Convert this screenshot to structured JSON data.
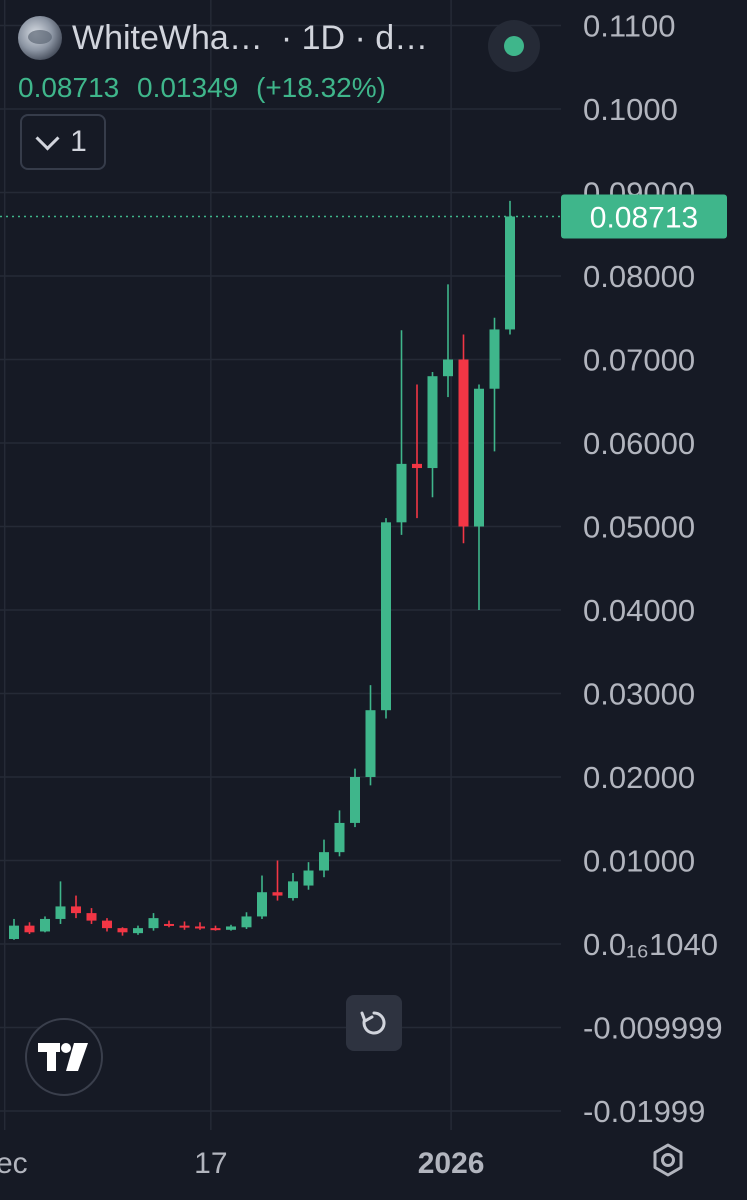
{
  "header": {
    "symbol": "WhiteWha…",
    "interval": "· 1D · d…",
    "close": "0.08713",
    "change": "0.01349",
    "change_pct": "(+18.32%)",
    "status_color": "#3fb68b"
  },
  "indicator_toggle": {
    "count": "1"
  },
  "price_label": "0.08713",
  "icons": {
    "reset": "reset-icon",
    "logo": "tradingview-logo-icon",
    "settings": "gear-icon"
  },
  "colors": {
    "background": "#161a25",
    "up": "#3fb68b",
    "down": "#f23645",
    "grid": "#252a36",
    "text": "#d1d4dc",
    "axis_text": "#b2b5be"
  },
  "chart_data": {
    "type": "candlestick",
    "y_ticks": [
      {
        "value": 0.11,
        "label": "0.1100"
      },
      {
        "value": 0.1,
        "label": "0.1000"
      },
      {
        "value": 0.09,
        "label": "0.09000"
      },
      {
        "value": 0.08,
        "label": "0.08000"
      },
      {
        "value": 0.07,
        "label": "0.07000"
      },
      {
        "value": 0.06,
        "label": "0.06000"
      },
      {
        "value": 0.05,
        "label": "0.05000"
      },
      {
        "value": 0.04,
        "label": "0.04000"
      },
      {
        "value": 0.03,
        "label": "0.03000"
      },
      {
        "value": 0.02,
        "label": "0.02000"
      },
      {
        "value": 0.01,
        "label": "0.01000"
      },
      {
        "value": 0.0,
        "label": "0.0₁₆1040"
      },
      {
        "value": -0.01,
        "label": "-0.009999"
      },
      {
        "value": -0.02,
        "label": "-0.01999"
      }
    ],
    "x_ticks": [
      {
        "index": -0.6,
        "label": "ec"
      },
      {
        "index": 12.7,
        "label": "17"
      },
      {
        "index": 28.2,
        "label": "2026",
        "bold": true
      }
    ],
    "last_price": 0.08713,
    "candles": [
      {
        "o": 0.0006,
        "h": 0.003,
        "l": 0.0005,
        "c": 0.0022
      },
      {
        "o": 0.0022,
        "h": 0.0026,
        "l": 0.0012,
        "c": 0.0014
      },
      {
        "o": 0.0015,
        "h": 0.0033,
        "l": 0.0014,
        "c": 0.003
      },
      {
        "o": 0.003,
        "h": 0.0075,
        "l": 0.0024,
        "c": 0.0045
      },
      {
        "o": 0.0045,
        "h": 0.0058,
        "l": 0.0031,
        "c": 0.0037
      },
      {
        "o": 0.0037,
        "h": 0.0043,
        "l": 0.0024,
        "c": 0.0028
      },
      {
        "o": 0.0028,
        "h": 0.0031,
        "l": 0.0015,
        "c": 0.0019
      },
      {
        "o": 0.0019,
        "h": 0.002,
        "l": 0.001,
        "c": 0.0014
      },
      {
        "o": 0.0013,
        "h": 0.0022,
        "l": 0.0011,
        "c": 0.0019
      },
      {
        "o": 0.0019,
        "h": 0.0037,
        "l": 0.0016,
        "c": 0.0031
      },
      {
        "o": 0.0024,
        "h": 0.0028,
        "l": 0.002,
        "c": 0.0022
      },
      {
        "o": 0.0022,
        "h": 0.0027,
        "l": 0.0017,
        "c": 0.002
      },
      {
        "o": 0.0021,
        "h": 0.0026,
        "l": 0.0017,
        "c": 0.0019
      },
      {
        "o": 0.0019,
        "h": 0.0022,
        "l": 0.0016,
        "c": 0.0017
      },
      {
        "o": 0.0017,
        "h": 0.0023,
        "l": 0.0016,
        "c": 0.0021
      },
      {
        "o": 0.002,
        "h": 0.0038,
        "l": 0.0018,
        "c": 0.0033
      },
      {
        "o": 0.0033,
        "h": 0.0082,
        "l": 0.003,
        "c": 0.0062
      },
      {
        "o": 0.0062,
        "h": 0.01,
        "l": 0.0052,
        "c": 0.0058
      },
      {
        "o": 0.0055,
        "h": 0.0085,
        "l": 0.0052,
        "c": 0.0075
      },
      {
        "o": 0.007,
        "h": 0.0098,
        "l": 0.0065,
        "c": 0.0088
      },
      {
        "o": 0.0088,
        "h": 0.0125,
        "l": 0.008,
        "c": 0.011
      },
      {
        "o": 0.011,
        "h": 0.016,
        "l": 0.0105,
        "c": 0.0145
      },
      {
        "o": 0.0145,
        "h": 0.021,
        "l": 0.014,
        "c": 0.02
      },
      {
        "o": 0.02,
        "h": 0.031,
        "l": 0.019,
        "c": 0.028
      },
      {
        "o": 0.028,
        "h": 0.051,
        "l": 0.027,
        "c": 0.0505
      },
      {
        "o": 0.0505,
        "h": 0.0735,
        "l": 0.049,
        "c": 0.0575
      },
      {
        "o": 0.0575,
        "h": 0.067,
        "l": 0.051,
        "c": 0.057
      },
      {
        "o": 0.057,
        "h": 0.0685,
        "l": 0.0535,
        "c": 0.068
      },
      {
        "o": 0.068,
        "h": 0.079,
        "l": 0.0655,
        "c": 0.07
      },
      {
        "o": 0.07,
        "h": 0.073,
        "l": 0.048,
        "c": 0.05
      },
      {
        "o": 0.05,
        "h": 0.067,
        "l": 0.04,
        "c": 0.0665
      },
      {
        "o": 0.0665,
        "h": 0.075,
        "l": 0.059,
        "c": 0.0736
      },
      {
        "o": 0.0736,
        "h": 0.089,
        "l": 0.073,
        "c": 0.08713
      }
    ]
  }
}
